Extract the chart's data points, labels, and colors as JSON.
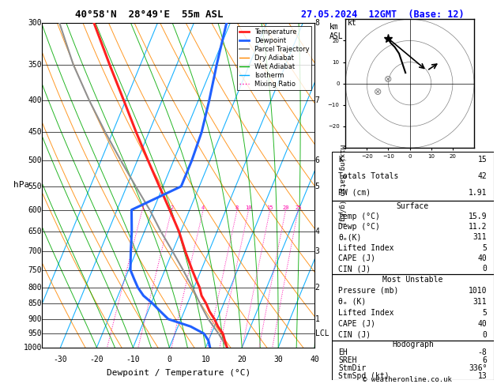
{
  "title_left": "40°58'N  28°49'E  55m ASL",
  "title_right": "27.05.2024  12GMT  (Base: 12)",
  "xlabel": "Dewpoint / Temperature (°C)",
  "pressure_ticks": [
    300,
    350,
    400,
    450,
    500,
    550,
    600,
    650,
    700,
    750,
    800,
    850,
    900,
    950,
    1000
  ],
  "temp_range_min": -35,
  "temp_range_max": 40,
  "temp_x_ticks": [
    -30,
    -20,
    -10,
    0,
    10,
    20,
    30,
    40
  ],
  "km_labels": {
    "300": "8",
    "400": "7",
    "500": "6",
    "550": "5",
    "650": "4",
    "700": "3",
    "800": "2",
    "900": "1",
    "950": "LCL"
  },
  "mixing_ratio_values": [
    1,
    2,
    4,
    8,
    10,
    15,
    20,
    25
  ],
  "temp_profile_p": [
    1000,
    975,
    950,
    925,
    900,
    875,
    850,
    825,
    800,
    775,
    750,
    700,
    650,
    600,
    550,
    500,
    450,
    400,
    350,
    300
  ],
  "temp_profile_t": [
    15.9,
    14.5,
    13.2,
    11.0,
    9.2,
    7.0,
    5.2,
    3.0,
    1.5,
    -0.5,
    -2.5,
    -6.5,
    -10.5,
    -15.5,
    -21.0,
    -27.0,
    -33.5,
    -40.5,
    -48.5,
    -57.5
  ],
  "dewp_profile_p": [
    1000,
    975,
    950,
    925,
    900,
    875,
    850,
    825,
    800,
    775,
    750,
    700,
    650,
    600,
    550,
    500,
    450,
    400,
    350,
    300
  ],
  "dewp_profile_t": [
    11.2,
    10.0,
    8.0,
    3.5,
    -3.5,
    -6.5,
    -9.5,
    -13.0,
    -15.5,
    -17.5,
    -19.5,
    -21.5,
    -23.5,
    -26.0,
    -15.0,
    -15.0,
    -15.5,
    -17.0,
    -19.0,
    -21.0
  ],
  "parcel_p": [
    1000,
    950,
    900,
    850,
    800,
    750,
    700,
    650,
    600,
    550,
    500,
    450,
    400,
    350,
    300
  ],
  "parcel_t": [
    15.9,
    12.0,
    7.5,
    3.5,
    -0.5,
    -5.0,
    -10.0,
    -15.5,
    -21.0,
    -27.5,
    -34.5,
    -42.0,
    -50.0,
    -58.5,
    -67.0
  ],
  "color_temp": "#ff2020",
  "color_dewp": "#2060ff",
  "color_parcel": "#909090",
  "color_dry_adiabat": "#ff8800",
  "color_wet_adiabat": "#00aa00",
  "color_isotherm": "#00aaff",
  "color_mixing_ratio": "#ff00aa",
  "stats_K": 15,
  "stats_TT": 42,
  "stats_PW": 1.91,
  "stats_sfc_temp": 15.9,
  "stats_sfc_dewp": 11.2,
  "stats_sfc_thetae": 311,
  "stats_sfc_li": 5,
  "stats_sfc_cape": 40,
  "stats_sfc_cin": 0,
  "stats_mu_pressure": 1010,
  "stats_mu_thetae": 311,
  "stats_mu_li": 5,
  "stats_mu_cape": 40,
  "stats_mu_cin": 0,
  "stats_eh": -8,
  "stats_sreh": 6,
  "stats_stmdir": 336,
  "stats_stmspd": 13,
  "hodo_u": [
    -2,
    -3,
    -4,
    -5,
    -7,
    -9,
    -10
  ],
  "hodo_v": [
    5,
    8,
    11,
    14,
    17,
    19,
    21
  ],
  "storm_u": 8,
  "storm_v": 6
}
